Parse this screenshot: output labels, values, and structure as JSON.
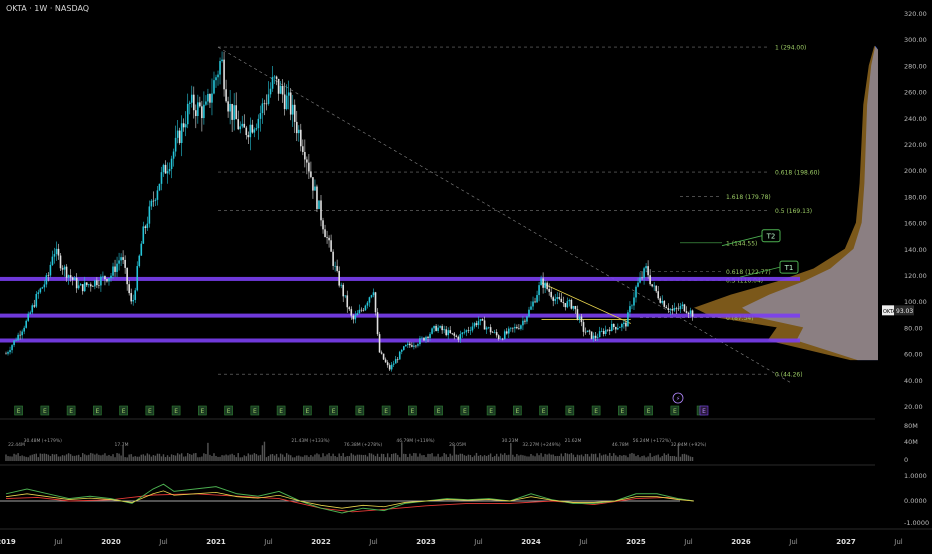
{
  "header": {
    "title": "OKTA · 1W · NASDAQ"
  },
  "colors": {
    "up": "#26c6da",
    "down": "#e0e0e0",
    "purple": "#7b3ff2",
    "fib": "#4caf50",
    "yellow": "#e8d44d",
    "vp_blue": "#2962ff",
    "vp_orange": "#e0a030",
    "osc_green": "#4caf50",
    "osc_yellow": "#e8d44d",
    "osc_red": "#e53935"
  },
  "chart_data": {
    "type": "candlestick",
    "symbol": "OKTA",
    "price_tag": {
      "symbol": "OKTA",
      "value": "93.03"
    },
    "y_ticks": [
      "320.00",
      "300.00",
      "280.00",
      "260.00",
      "240.00",
      "220.00",
      "200.00",
      "180.00",
      "160.00",
      "140.00",
      "120.00",
      "100.00",
      "80.00",
      "60.00",
      "40.00",
      "20.00"
    ],
    "x_ticks": [
      "2019",
      "Jul",
      "2020",
      "Jul",
      "2021",
      "Jul",
      "2022",
      "Jul",
      "2023",
      "Jul",
      "2024",
      "Jul",
      "2025",
      "Jul",
      "2026",
      "Jul",
      "2027",
      "Jul"
    ],
    "price_path": [
      [
        2019.0,
        60
      ],
      [
        2019.1,
        72
      ],
      [
        2019.2,
        85
      ],
      [
        2019.3,
        105
      ],
      [
        2019.4,
        118
      ],
      [
        2019.45,
        140
      ],
      [
        2019.55,
        125
      ],
      [
        2019.7,
        110
      ],
      [
        2019.85,
        115
      ],
      [
        2020.0,
        120
      ],
      [
        2020.1,
        135
      ],
      [
        2020.2,
        95
      ],
      [
        2020.3,
        150
      ],
      [
        2020.45,
        190
      ],
      [
        2020.6,
        215
      ],
      [
        2020.75,
        250
      ],
      [
        2020.9,
        245
      ],
      [
        2021.05,
        285
      ],
      [
        2021.12,
        250
      ],
      [
        2021.25,
        228
      ],
      [
        2021.4,
        240
      ],
      [
        2021.55,
        268
      ],
      [
        2021.7,
        250
      ],
      [
        2021.85,
        215
      ],
      [
        2021.95,
        180
      ],
      [
        2022.05,
        150
      ],
      [
        2022.15,
        120
      ],
      [
        2022.3,
        85
      ],
      [
        2022.4,
        95
      ],
      [
        2022.5,
        110
      ],
      [
        2022.55,
        62
      ],
      [
        2022.65,
        48
      ],
      [
        2022.8,
        65
      ],
      [
        2022.95,
        70
      ],
      [
        2023.1,
        80
      ],
      [
        2023.3,
        72
      ],
      [
        2023.5,
        85
      ],
      [
        2023.7,
        72
      ],
      [
        2023.9,
        82
      ],
      [
        2024.0,
        95
      ],
      [
        2024.1,
        115
      ],
      [
        2024.25,
        100
      ],
      [
        2024.4,
        97
      ],
      [
        2024.5,
        78
      ],
      [
        2024.6,
        72
      ],
      [
        2024.75,
        80
      ],
      [
        2024.9,
        82
      ],
      [
        2025.0,
        110
      ],
      [
        2025.1,
        125
      ],
      [
        2025.15,
        112
      ],
      [
        2025.25,
        100
      ],
      [
        2025.35,
        92
      ],
      [
        2025.45,
        96
      ],
      [
        2025.55,
        90
      ]
    ],
    "horizontal_levels": [
      {
        "type": "purple-zone",
        "value": 117
      },
      {
        "type": "purple-zone",
        "value": 89
      },
      {
        "type": "purple-zone",
        "value": 70
      }
    ],
    "fib_main": [
      {
        "label": "1 (294.00)",
        "value": 294
      },
      {
        "label": "0.618 (198.60)",
        "value": 198.6
      },
      {
        "label": "0.5 (169.13)",
        "value": 169.13
      },
      {
        "label": "0 (44.26)",
        "value": 44.26
      }
    ],
    "fib_extension": [
      {
        "label": "1.618 (179.78)",
        "value": 179.78
      },
      {
        "label": "1 (144.55)",
        "value": 144.55
      },
      {
        "label": "0.618 (122.77)",
        "value": 122.77
      },
      {
        "label": "0.5 (116.04)",
        "value": 116.04
      },
      {
        "label": "0 (87.54)",
        "value": 87.54
      }
    ],
    "targets": [
      {
        "label": "T2",
        "value": 150
      },
      {
        "label": "T1",
        "value": 126
      }
    ],
    "volume_axis": [
      "80M",
      "40M",
      "0"
    ],
    "volume_labels": [
      "22.44M",
      "30.48M (+179%)",
      "17.7M",
      "21.43M (+133%)",
      "76.38M (+278%)",
      "46.79M (+119%)",
      "28.05M",
      "30.23M",
      "32.27M (+249%)",
      "21.62M",
      "46.78M",
      "56.24M (+172%)",
      "32.94M (+92%)"
    ],
    "oscillator_axis": [
      "1.0000",
      "0.0000",
      "-1.0000"
    ],
    "oscillator_green": [
      [
        2019.0,
        0.3
      ],
      [
        2019.2,
        0.5
      ],
      [
        2019.4,
        0.3
      ],
      [
        2019.6,
        0.1
      ],
      [
        2019.8,
        0.2
      ],
      [
        2020.0,
        0.1
      ],
      [
        2020.2,
        -0.1
      ],
      [
        2020.4,
        0.5
      ],
      [
        2020.5,
        0.7
      ],
      [
        2020.6,
        0.4
      ],
      [
        2020.8,
        0.5
      ],
      [
        2021.0,
        0.6
      ],
      [
        2021.2,
        0.3
      ],
      [
        2021.4,
        0.2
      ],
      [
        2021.6,
        0.4
      ],
      [
        2021.8,
        0.0
      ],
      [
        2022.0,
        -0.3
      ],
      [
        2022.2,
        -0.5
      ],
      [
        2022.4,
        -0.3
      ],
      [
        2022.6,
        -0.4
      ],
      [
        2022.8,
        -0.1
      ],
      [
        2023.0,
        0.0
      ],
      [
        2023.2,
        0.1
      ],
      [
        2023.4,
        0.05
      ],
      [
        2023.6,
        0.1
      ],
      [
        2023.8,
        0.0
      ],
      [
        2024.0,
        0.3
      ],
      [
        2024.2,
        0.05
      ],
      [
        2024.4,
        -0.1
      ],
      [
        2024.6,
        -0.1
      ],
      [
        2024.8,
        0.0
      ],
      [
        2025.0,
        0.3
      ],
      [
        2025.2,
        0.3
      ],
      [
        2025.4,
        0.1
      ],
      [
        2025.55,
        0.0
      ]
    ],
    "oscillator_red": [
      [
        2019.0,
        0.1
      ],
      [
        2019.3,
        0.15
      ],
      [
        2019.6,
        0.0
      ],
      [
        2020.0,
        0.05
      ],
      [
        2020.4,
        0.25
      ],
      [
        2020.8,
        0.3
      ],
      [
        2021.2,
        0.2
      ],
      [
        2021.6,
        0.1
      ],
      [
        2022.0,
        -0.3
      ],
      [
        2022.3,
        -0.45
      ],
      [
        2022.6,
        -0.35
      ],
      [
        2023.0,
        -0.2
      ],
      [
        2023.4,
        -0.1
      ],
      [
        2023.8,
        -0.1
      ],
      [
        2024.2,
        0.0
      ],
      [
        2024.6,
        -0.15
      ],
      [
        2025.0,
        0.1
      ],
      [
        2025.3,
        0.15
      ],
      [
        2025.55,
        0.0
      ]
    ],
    "vp_shape": [
      [
        55,
        0.15
      ],
      [
        65,
        0.45
      ],
      [
        70,
        0.6
      ],
      [
        80,
        0.55
      ],
      [
        88,
        0.9
      ],
      [
        95,
        1.0
      ],
      [
        105,
        0.8
      ],
      [
        115,
        0.55
      ],
      [
        125,
        0.35
      ],
      [
        140,
        0.18
      ],
      [
        160,
        0.12
      ],
      [
        190,
        0.1
      ],
      [
        220,
        0.09
      ],
      [
        250,
        0.08
      ],
      [
        280,
        0.05
      ],
      [
        295,
        0.02
      ]
    ]
  }
}
